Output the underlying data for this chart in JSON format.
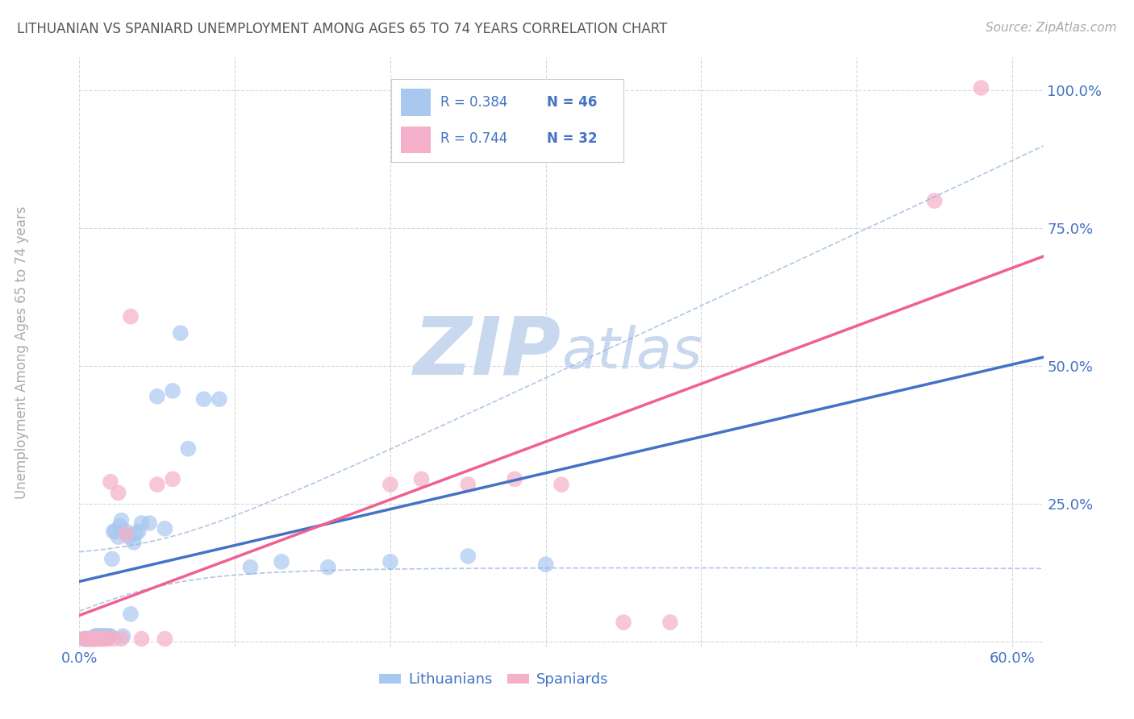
{
  "title": "LITHUANIAN VS SPANIARD UNEMPLOYMENT AMONG AGES 65 TO 74 YEARS CORRELATION CHART",
  "source": "Source: ZipAtlas.com",
  "ylabel": "Unemployment Among Ages 65 to 74 years",
  "xlim": [
    0.0,
    0.62
  ],
  "ylim": [
    -0.01,
    1.06
  ],
  "xticks": [
    0.0,
    0.1,
    0.2,
    0.3,
    0.4,
    0.5,
    0.6
  ],
  "xticklabels": [
    "0.0%",
    "",
    "",
    "",
    "",
    "",
    "60.0%"
  ],
  "yticks": [
    0.0,
    0.25,
    0.5,
    0.75,
    1.0
  ],
  "yticklabels": [
    "",
    "25.0%",
    "50.0%",
    "75.0%",
    "100.0%"
  ],
  "legend_text_color": "#4472C4",
  "color_blue": "#A8C8F0",
  "color_pink": "#F4B0C8",
  "color_blue_line": "#4472C4",
  "color_pink_line": "#F06090",
  "color_blue_dash": "#8EB0D8",
  "background_color": "#FFFFFF",
  "grid_color": "#D8D8D8",
  "watermark_color": "#C8D8EE",
  "scatter_blue_x": [
    0.003,
    0.004,
    0.005,
    0.006,
    0.007,
    0.008,
    0.009,
    0.01,
    0.011,
    0.012,
    0.013,
    0.014,
    0.015,
    0.016,
    0.017,
    0.018,
    0.019,
    0.02,
    0.021,
    0.022,
    0.023,
    0.025,
    0.026,
    0.027,
    0.028,
    0.03,
    0.032,
    0.033,
    0.035,
    0.036,
    0.038,
    0.04,
    0.045,
    0.05,
    0.055,
    0.06,
    0.065,
    0.07,
    0.08,
    0.09,
    0.11,
    0.13,
    0.16,
    0.2,
    0.25,
    0.3
  ],
  "scatter_blue_y": [
    0.005,
    0.005,
    0.005,
    0.005,
    0.005,
    0.005,
    0.005,
    0.01,
    0.01,
    0.01,
    0.01,
    0.01,
    0.01,
    0.01,
    0.01,
    0.01,
    0.01,
    0.01,
    0.15,
    0.2,
    0.2,
    0.19,
    0.21,
    0.22,
    0.01,
    0.2,
    0.19,
    0.05,
    0.18,
    0.195,
    0.2,
    0.215,
    0.215,
    0.445,
    0.205,
    0.455,
    0.56,
    0.35,
    0.44,
    0.44,
    0.135,
    0.145,
    0.135,
    0.145,
    0.155,
    0.14
  ],
  "scatter_pink_x": [
    0.003,
    0.005,
    0.006,
    0.008,
    0.009,
    0.01,
    0.012,
    0.013,
    0.015,
    0.017,
    0.018,
    0.02,
    0.022,
    0.025,
    0.027,
    0.03,
    0.033,
    0.05,
    0.055,
    0.06,
    0.2,
    0.22,
    0.25,
    0.28,
    0.31,
    0.35,
    0.38,
    0.55,
    0.58,
    0.01,
    0.015,
    0.04
  ],
  "scatter_pink_y": [
    0.005,
    0.005,
    0.005,
    0.005,
    0.005,
    0.005,
    0.005,
    0.005,
    0.005,
    0.005,
    0.005,
    0.29,
    0.005,
    0.27,
    0.005,
    0.195,
    0.59,
    0.285,
    0.005,
    0.295,
    0.285,
    0.295,
    0.285,
    0.295,
    0.285,
    0.035,
    0.035,
    0.8,
    1.005,
    0.005,
    0.005,
    0.005
  ]
}
